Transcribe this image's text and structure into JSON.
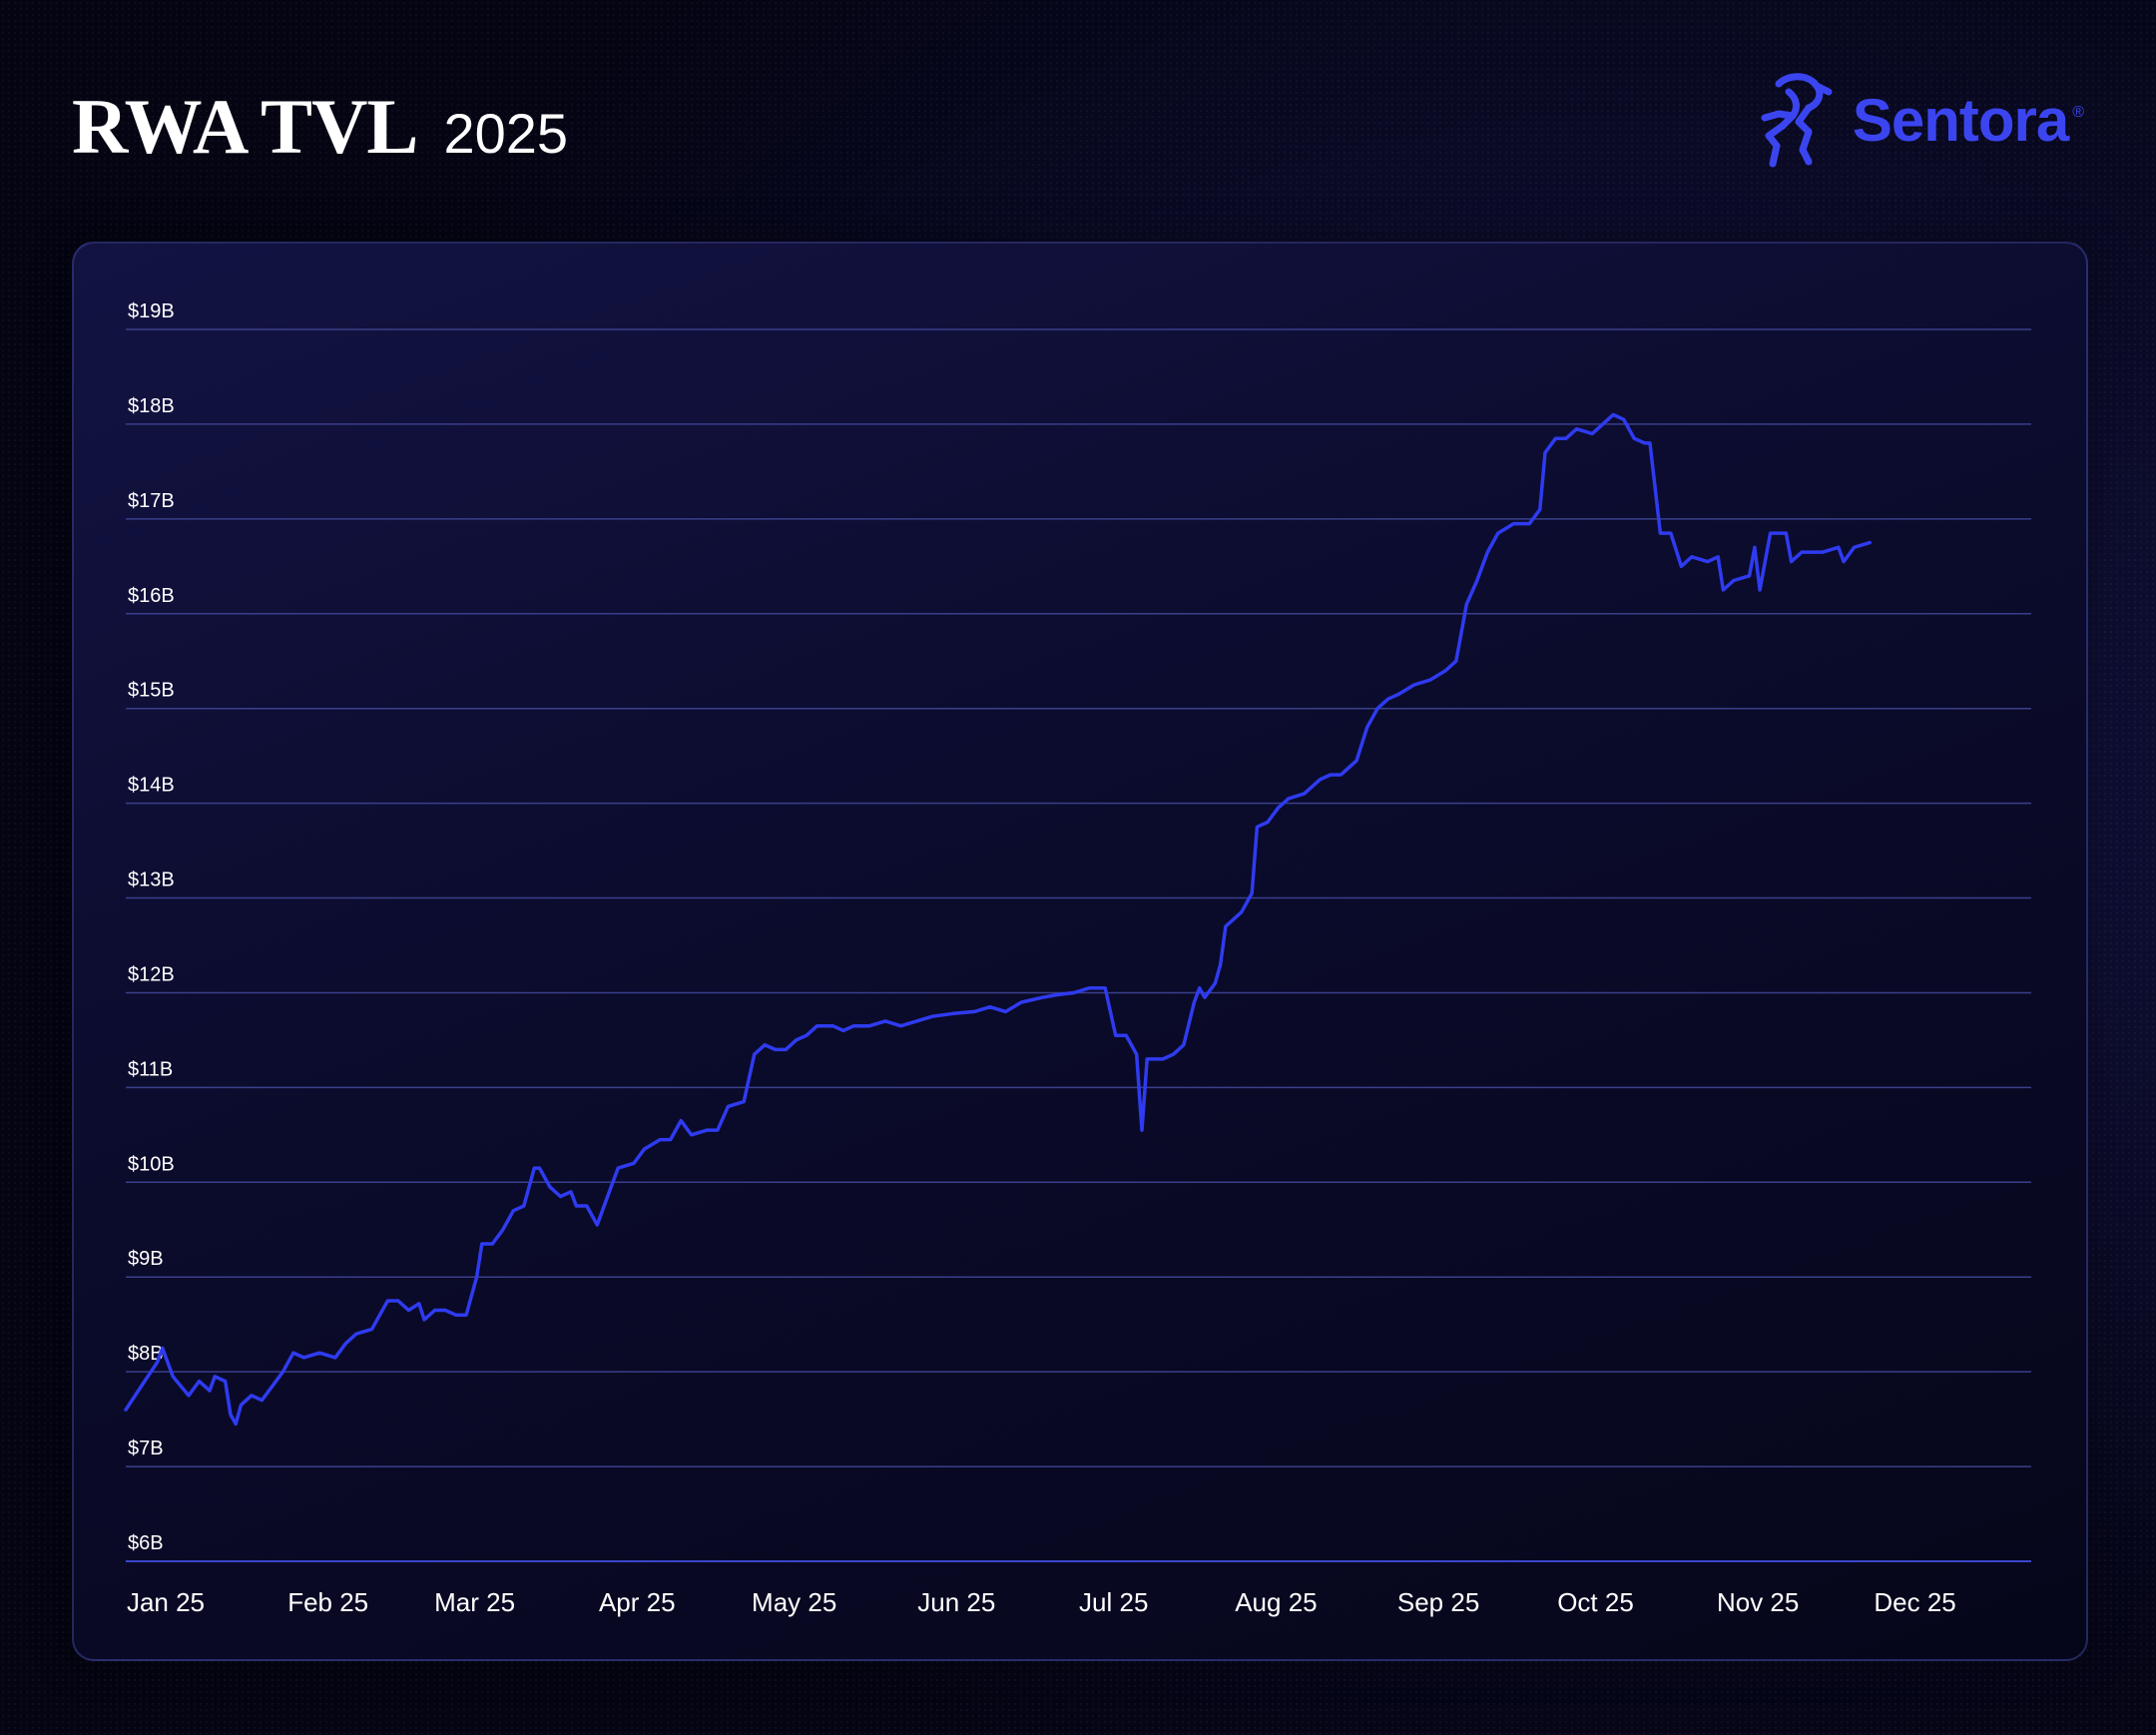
{
  "header": {
    "title": "RWA TVL",
    "year": "2025"
  },
  "logo": {
    "wordmark": "Sentora",
    "registered_mark": "®",
    "icon": "sentora-horse-icon",
    "color": "#3b45ef"
  },
  "colors": {
    "line": "#2f3bf0",
    "grid": "#3a3f8a",
    "text": "#ffffff"
  },
  "chart_data": {
    "type": "line",
    "title": "RWA TVL",
    "ylim": [
      6,
      19
    ],
    "y_ticks": [
      {
        "value": 19,
        "label": "$19B"
      },
      {
        "value": 18,
        "label": "$18B"
      },
      {
        "value": 17,
        "label": "$17B"
      },
      {
        "value": 16,
        "label": "$16B"
      },
      {
        "value": 15,
        "label": "$15B"
      },
      {
        "value": 14,
        "label": "$14B"
      },
      {
        "value": 13,
        "label": "$13B"
      },
      {
        "value": 12,
        "label": "$12B"
      },
      {
        "value": 11,
        "label": "$11B"
      },
      {
        "value": 10,
        "label": "$10B"
      },
      {
        "value": 9,
        "label": "$9B"
      },
      {
        "value": 8,
        "label": "$8B"
      },
      {
        "value": 7,
        "label": "$7B"
      },
      {
        "value": 6,
        "label": "$6B"
      }
    ],
    "x_ticks": [
      {
        "date": "2025-01-01",
        "label": "Jan 25"
      },
      {
        "date": "2025-02-01",
        "label": "Feb 25"
      },
      {
        "date": "2025-03-01",
        "label": "Mar 25"
      },
      {
        "date": "2025-04-01",
        "label": "Apr 25"
      },
      {
        "date": "2025-05-01",
        "label": "May 25"
      },
      {
        "date": "2025-06-01",
        "label": "Jun 25"
      },
      {
        "date": "2025-07-01",
        "label": "Jul 25"
      },
      {
        "date": "2025-08-01",
        "label": "Aug 25"
      },
      {
        "date": "2025-09-01",
        "label": "Sep 25"
      },
      {
        "date": "2025-10-01",
        "label": "Oct 25"
      },
      {
        "date": "2025-11-01",
        "label": "Nov 25"
      },
      {
        "date": "2025-12-01",
        "label": "Dec 25"
      }
    ],
    "grid": true,
    "series": [
      {
        "points": [
          [
            "2025-01-01",
            7.6
          ],
          [
            "2025-01-04",
            7.85
          ],
          [
            "2025-01-07",
            8.1
          ],
          [
            "2025-01-08",
            8.25
          ],
          [
            "2025-01-10",
            7.95
          ],
          [
            "2025-01-13",
            7.75
          ],
          [
            "2025-01-15",
            7.9
          ],
          [
            "2025-01-17",
            7.8
          ],
          [
            "2025-01-18",
            7.95
          ],
          [
            "2025-01-20",
            7.9
          ],
          [
            "2025-01-21",
            7.55
          ],
          [
            "2025-01-22",
            7.45
          ],
          [
            "2025-01-23",
            7.65
          ],
          [
            "2025-01-25",
            7.75
          ],
          [
            "2025-01-27",
            7.7
          ],
          [
            "2025-01-29",
            7.85
          ],
          [
            "2025-01-31",
            8.0
          ],
          [
            "2025-02-02",
            8.2
          ],
          [
            "2025-02-04",
            8.15
          ],
          [
            "2025-02-07",
            8.2
          ],
          [
            "2025-02-10",
            8.15
          ],
          [
            "2025-02-12",
            8.3
          ],
          [
            "2025-02-14",
            8.4
          ],
          [
            "2025-02-17",
            8.45
          ],
          [
            "2025-02-20",
            8.75
          ],
          [
            "2025-02-22",
            8.75
          ],
          [
            "2025-02-24",
            8.65
          ],
          [
            "2025-02-26",
            8.72
          ],
          [
            "2025-02-27",
            8.55
          ],
          [
            "2025-03-01",
            8.65
          ],
          [
            "2025-03-03",
            8.65
          ],
          [
            "2025-03-05",
            8.6
          ],
          [
            "2025-03-07",
            8.6
          ],
          [
            "2025-03-09",
            9.0
          ],
          [
            "2025-03-10",
            9.35
          ],
          [
            "2025-03-12",
            9.35
          ],
          [
            "2025-03-14",
            9.5
          ],
          [
            "2025-03-16",
            9.7
          ],
          [
            "2025-03-18",
            9.75
          ],
          [
            "2025-03-20",
            10.15
          ],
          [
            "2025-03-21",
            10.15
          ],
          [
            "2025-03-23",
            9.95
          ],
          [
            "2025-03-25",
            9.85
          ],
          [
            "2025-03-27",
            9.9
          ],
          [
            "2025-03-28",
            9.75
          ],
          [
            "2025-03-30",
            9.75
          ],
          [
            "2025-04-01",
            9.55
          ],
          [
            "2025-04-03",
            9.85
          ],
          [
            "2025-04-05",
            10.15
          ],
          [
            "2025-04-08",
            10.2
          ],
          [
            "2025-04-10",
            10.35
          ],
          [
            "2025-04-13",
            10.45
          ],
          [
            "2025-04-15",
            10.45
          ],
          [
            "2025-04-17",
            10.65
          ],
          [
            "2025-04-19",
            10.5
          ],
          [
            "2025-04-22",
            10.55
          ],
          [
            "2025-04-24",
            10.55
          ],
          [
            "2025-04-26",
            10.8
          ],
          [
            "2025-04-29",
            10.85
          ],
          [
            "2025-05-01",
            11.35
          ],
          [
            "2025-05-03",
            11.45
          ],
          [
            "2025-05-05",
            11.4
          ],
          [
            "2025-05-07",
            11.4
          ],
          [
            "2025-05-09",
            11.5
          ],
          [
            "2025-05-11",
            11.55
          ],
          [
            "2025-05-13",
            11.65
          ],
          [
            "2025-05-16",
            11.65
          ],
          [
            "2025-05-18",
            11.6
          ],
          [
            "2025-05-20",
            11.65
          ],
          [
            "2025-05-23",
            11.65
          ],
          [
            "2025-05-26",
            11.7
          ],
          [
            "2025-05-29",
            11.65
          ],
          [
            "2025-06-01",
            11.7
          ],
          [
            "2025-06-04",
            11.75
          ],
          [
            "2025-06-08",
            11.78
          ],
          [
            "2025-06-12",
            11.8
          ],
          [
            "2025-06-15",
            11.85
          ],
          [
            "2025-06-18",
            11.8
          ],
          [
            "2025-06-21",
            11.9
          ],
          [
            "2025-06-25",
            11.95
          ],
          [
            "2025-06-28",
            11.98
          ],
          [
            "2025-07-01",
            12.0
          ],
          [
            "2025-07-04",
            12.05
          ],
          [
            "2025-07-07",
            12.05
          ],
          [
            "2025-07-09",
            11.55
          ],
          [
            "2025-07-11",
            11.55
          ],
          [
            "2025-07-13",
            11.35
          ],
          [
            "2025-07-14",
            10.55
          ],
          [
            "2025-07-15",
            11.3
          ],
          [
            "2025-07-18",
            11.3
          ],
          [
            "2025-07-20",
            11.35
          ],
          [
            "2025-07-22",
            11.45
          ],
          [
            "2025-07-24",
            11.9
          ],
          [
            "2025-07-25",
            12.05
          ],
          [
            "2025-07-26",
            11.95
          ],
          [
            "2025-07-28",
            12.1
          ],
          [
            "2025-07-29",
            12.3
          ],
          [
            "2025-07-30",
            12.7
          ],
          [
            "2025-08-02",
            12.85
          ],
          [
            "2025-08-04",
            13.05
          ],
          [
            "2025-08-05",
            13.75
          ],
          [
            "2025-08-07",
            13.8
          ],
          [
            "2025-08-09",
            13.95
          ],
          [
            "2025-08-11",
            14.05
          ],
          [
            "2025-08-14",
            14.1
          ],
          [
            "2025-08-17",
            14.25
          ],
          [
            "2025-08-19",
            14.3
          ],
          [
            "2025-08-21",
            14.3
          ],
          [
            "2025-08-24",
            14.45
          ],
          [
            "2025-08-26",
            14.8
          ],
          [
            "2025-08-28",
            15.0
          ],
          [
            "2025-08-30",
            15.1
          ],
          [
            "2025-09-01",
            15.15
          ],
          [
            "2025-09-04",
            15.25
          ],
          [
            "2025-09-07",
            15.3
          ],
          [
            "2025-09-10",
            15.4
          ],
          [
            "2025-09-12",
            15.5
          ],
          [
            "2025-09-14",
            16.1
          ],
          [
            "2025-09-16",
            16.35
          ],
          [
            "2025-09-18",
            16.65
          ],
          [
            "2025-09-20",
            16.85
          ],
          [
            "2025-09-23",
            16.95
          ],
          [
            "2025-09-26",
            16.95
          ],
          [
            "2025-09-28",
            17.1
          ],
          [
            "2025-09-29",
            17.7
          ],
          [
            "2025-10-01",
            17.85
          ],
          [
            "2025-10-03",
            17.85
          ],
          [
            "2025-10-05",
            17.95
          ],
          [
            "2025-10-08",
            17.9
          ],
          [
            "2025-10-10",
            18.0
          ],
          [
            "2025-10-12",
            18.1
          ],
          [
            "2025-10-14",
            18.05
          ],
          [
            "2025-10-16",
            17.85
          ],
          [
            "2025-10-18",
            17.8
          ],
          [
            "2025-10-19",
            17.8
          ],
          [
            "2025-10-21",
            16.85
          ],
          [
            "2025-10-23",
            16.85
          ],
          [
            "2025-10-25",
            16.5
          ],
          [
            "2025-10-27",
            16.6
          ],
          [
            "2025-10-30",
            16.55
          ],
          [
            "2025-11-01",
            16.6
          ],
          [
            "2025-11-02",
            16.25
          ],
          [
            "2025-11-04",
            16.35
          ],
          [
            "2025-11-07",
            16.4
          ],
          [
            "2025-11-08",
            16.7
          ],
          [
            "2025-11-09",
            16.25
          ],
          [
            "2025-11-11",
            16.85
          ],
          [
            "2025-11-14",
            16.85
          ],
          [
            "2025-11-15",
            16.55
          ],
          [
            "2025-11-17",
            16.65
          ],
          [
            "2025-11-21",
            16.65
          ],
          [
            "2025-11-24",
            16.7
          ],
          [
            "2025-11-25",
            16.55
          ],
          [
            "2025-11-27",
            16.7
          ],
          [
            "2025-11-30",
            16.75
          ]
        ]
      }
    ]
  }
}
